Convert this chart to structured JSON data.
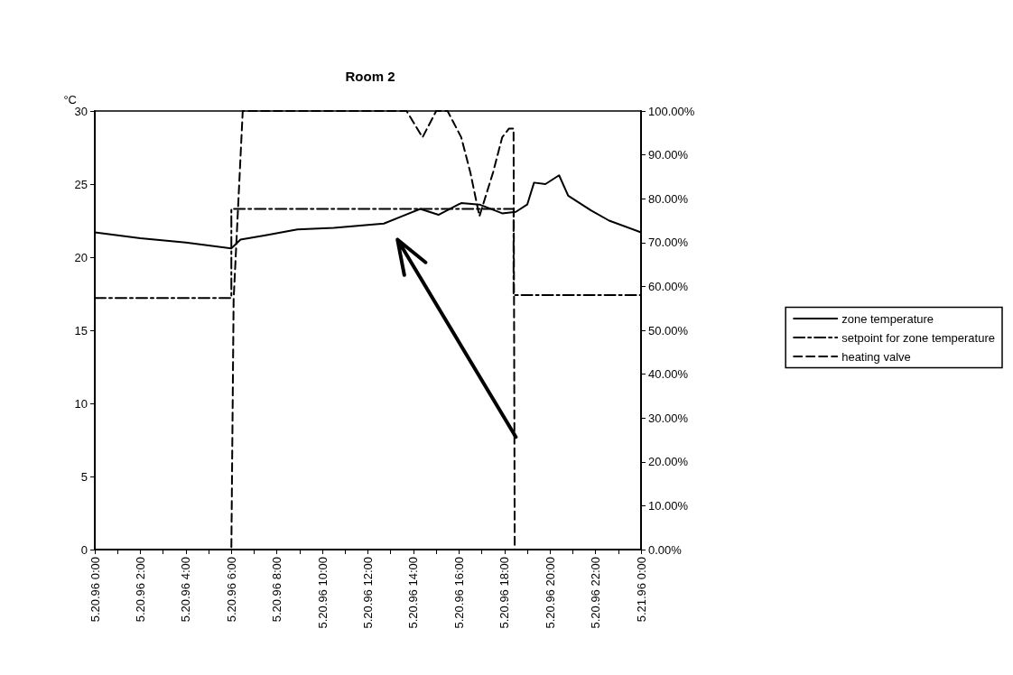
{
  "chart_data": {
    "type": "line",
    "title": "Room 2",
    "ylabel": "°C",
    "xlim": [
      "1996-05-20T00:00",
      "1996-05-21T00:00"
    ],
    "xticks": [
      {
        "value": "1996-05-20T00:00",
        "label": "5.20.96 0:00"
      },
      {
        "value": "1996-05-20T01:00",
        "label": null
      },
      {
        "value": "1996-05-20T02:00",
        "label": "5.20.96 2:00"
      },
      {
        "value": "1996-05-20T03:00",
        "label": null
      },
      {
        "value": "1996-05-20T04:00",
        "label": "5.20.96 4:00"
      },
      {
        "value": "1996-05-20T05:00",
        "label": null
      },
      {
        "value": "1996-05-20T06:00",
        "label": "5.20.96 6:00"
      },
      {
        "value": "1996-05-20T07:00",
        "label": null
      },
      {
        "value": "1996-05-20T08:00",
        "label": "5.20.96 8:00"
      },
      {
        "value": "1996-05-20T09:00",
        "label": null
      },
      {
        "value": "1996-05-20T10:00",
        "label": "5.20.96 10:00"
      },
      {
        "value": "1996-05-20T11:00",
        "label": null
      },
      {
        "value": "1996-05-20T12:00",
        "label": "5.20.96 12:00"
      },
      {
        "value": "1996-05-20T13:00",
        "label": null
      },
      {
        "value": "1996-05-20T14:00",
        "label": "5.20.96 14:00"
      },
      {
        "value": "1996-05-20T15:00",
        "label": null
      },
      {
        "value": "1996-05-20T16:00",
        "label": "5.20.96 16:00"
      },
      {
        "value": "1996-05-20T17:00",
        "label": null
      },
      {
        "value": "1996-05-20T18:00",
        "label": "5.20.96 18:00"
      },
      {
        "value": "1996-05-20T19:00",
        "label": null
      },
      {
        "value": "1996-05-20T20:00",
        "label": "5.20.96 20:00"
      },
      {
        "value": "1996-05-20T21:00",
        "label": null
      },
      {
        "value": "1996-05-20T22:00",
        "label": "5.20.96 22:00"
      },
      {
        "value": "1996-05-20T23:00",
        "label": null
      },
      {
        "value": "1996-05-21T00:00",
        "label": "5.21.96 0:00"
      }
    ],
    "ylim": [
      0,
      30
    ],
    "yticks": [
      0,
      5,
      10,
      15,
      20,
      25,
      30
    ],
    "y2lim": [
      0,
      100
    ],
    "y2ticks": [
      {
        "value": 0,
        "label": "0.00%"
      },
      {
        "value": 10,
        "label": "10.00%"
      },
      {
        "value": 20,
        "label": "20.00%"
      },
      {
        "value": 30,
        "label": "30.00%"
      },
      {
        "value": 40,
        "label": "40.00%"
      },
      {
        "value": 50,
        "label": "50.00%"
      },
      {
        "value": 60,
        "label": "60.00%"
      },
      {
        "value": 70,
        "label": "70.00%"
      },
      {
        "value": 80,
        "label": "80.00%"
      },
      {
        "value": 90,
        "label": "90.00%"
      },
      {
        "value": 100,
        "label": "100.00%"
      }
    ],
    "grid": false,
    "legend": "right",
    "marker": "none",
    "series": [
      {
        "name": "zone temperature",
        "color": "#000000",
        "line_style": "solid",
        "x": [
          "1996-05-20T00:00",
          "1996-05-20T02:00",
          "1996-05-20T04:00",
          "1996-05-20T06:00",
          "1996-05-20T06:24",
          "1996-05-20T07:30",
          "1996-05-20T08:54",
          "1996-05-20T10:30",
          "1996-05-20T12:00",
          "1996-05-20T12:42",
          "1996-05-20T13:30",
          "1996-05-20T14:18",
          "1996-05-20T15:06",
          "1996-05-20T16:06",
          "1996-05-20T16:54",
          "1996-05-20T17:54",
          "1996-05-20T18:30",
          "1996-05-20T19:00",
          "1996-05-20T19:18",
          "1996-05-20T19:48",
          "1996-05-20T20:24",
          "1996-05-20T20:48",
          "1996-05-20T21:48",
          "1996-05-20T22:36",
          "1996-05-21T00:00"
        ],
        "values": [
          21.7,
          21.3,
          21.0,
          20.6,
          21.2,
          21.5,
          21.9,
          22.0,
          22.2,
          22.3,
          22.8,
          23.3,
          22.9,
          23.7,
          23.6,
          23.0,
          23.1,
          23.6,
          25.1,
          25.0,
          25.6,
          24.2,
          23.2,
          22.5,
          21.7
        ]
      },
      {
        "name": "setpoint for zone temperature",
        "color": "#000000",
        "line_style": "dotted",
        "x": [
          "1996-05-20T00:00",
          "1996-05-20T06:00",
          "1996-05-20T06:00",
          "1996-05-20T18:24",
          "1996-05-20T18:24",
          "1996-05-21T00:00"
        ],
        "values": [
          17.2,
          17.2,
          23.3,
          23.3,
          17.4,
          17.4
        ]
      },
      {
        "name": "heating valve",
        "color": "#000000",
        "line_style": "dashed",
        "axis": "y2",
        "x": [
          "1996-05-20T00:00",
          "1996-05-20T06:00",
          "1996-05-20T06:06",
          "1996-05-20T06:30",
          "1996-05-20T13:42",
          "1996-05-20T14:24",
          "1996-05-20T15:00",
          "1996-05-20T15:30",
          "1996-05-20T16:06",
          "1996-05-20T16:30",
          "1996-05-20T16:54",
          "1996-05-20T17:30",
          "1996-05-20T17:54",
          "1996-05-20T18:12",
          "1996-05-20T18:24",
          "1996-05-20T18:27",
          "1996-05-21T00:00"
        ],
        "values": [
          0,
          0,
          57,
          100,
          100,
          94,
          100,
          100,
          94,
          86,
          76,
          86,
          94,
          96,
          96,
          0,
          0
        ]
      }
    ]
  }
}
